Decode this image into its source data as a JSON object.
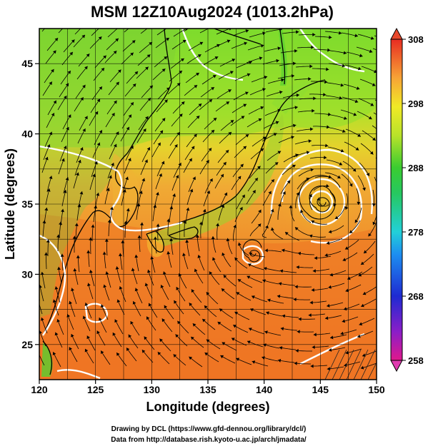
{
  "title": "MSM 12Z10Aug2024 (1013.2hPa)",
  "xlabel": "Longitude (degrees)",
  "ylabel": "Latitude  (degrees)",
  "x_ticks": [
    "120",
    "125",
    "130",
    "135",
    "140",
    "145",
    "150"
  ],
  "y_ticks": [
    "25",
    "30",
    "35",
    "40",
    "45"
  ],
  "colorbar": {
    "labels": [
      "308",
      "298",
      "288",
      "278",
      "268",
      "258"
    ],
    "range": [
      258,
      308
    ],
    "colors": [
      "#e0188c",
      "#8a1ec8",
      "#1e2ad2",
      "#1d8ef0",
      "#22d0d8",
      "#26c860",
      "#3acc30",
      "#b8e22a",
      "#f0ea26",
      "#f7a336",
      "#ef6a2a",
      "#e82c22"
    ]
  },
  "credits": {
    "line1": "Drawing by DCL (https://www.gfd-dennou.org/library/dcl/)",
    "line2": "Data from http://database.rish.kyoto-u.ac.jp/arch/jmadata/"
  },
  "map": {
    "lon_range": [
      120,
      150
    ],
    "lat_range": [
      22.5,
      47.5
    ],
    "field_colors": {
      "warm": "#ef7a22",
      "mid": "#f0a02e",
      "cool": "#bfe22a",
      "cold": "#52d02e",
      "land": "#49c23a"
    }
  }
}
